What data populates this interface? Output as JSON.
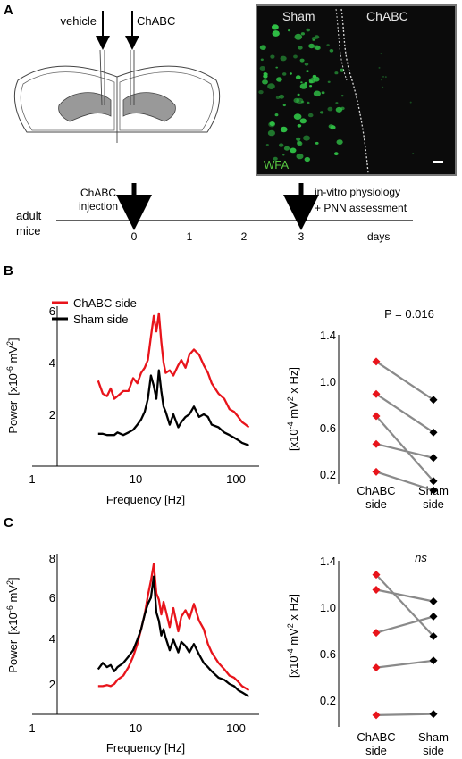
{
  "panel_a": {
    "label": "A",
    "schematic": {
      "left_injection": "vehicle",
      "right_injection": "ChABC"
    },
    "micrograph": {
      "left_label": "Sham",
      "right_label": "ChABC",
      "stain": "WFA",
      "colors": {
        "background": "#0b0b0b",
        "cells": "#2fbf45",
        "stain_label": "#57c641"
      }
    },
    "timeline": {
      "subject_line1": "adult",
      "subject_line2": "mice",
      "event_start_line1": "ChABC",
      "event_start_line2": "injection",
      "event_end_line1": "in-vitro physiology",
      "event_end_line2": "+ PNN assessment",
      "ticks": [
        "0",
        "1",
        "2",
        "3"
      ],
      "unit": "days"
    }
  },
  "panel_b": {
    "label": "B",
    "spectrum": {
      "legend": [
        "ChABC side",
        "Sham side"
      ],
      "ylabel_prefix": "Power",
      "ylabel_unit_pre": "[x10",
      "ylabel_exp": "-6",
      "ylabel_unit_mid": " mV",
      "ylabel_exp2": "2",
      "ylabel_unit_post": "]",
      "xlabel": "Frequency [Hz]",
      "yticks": [
        "2",
        "4",
        "6"
      ],
      "xticks": [
        "1",
        "10",
        "100"
      ]
    },
    "paired": {
      "annotation": "P = 0.016",
      "ylabel_pre": "[x10",
      "ylabel_exp": "-4",
      "ylabel_mid": " mV",
      "ylabel_exp2": "2",
      "ylabel_post": " x Hz]",
      "yticks": [
        "0.2",
        "0.6",
        "1.0",
        "1.4"
      ],
      "cat1_line1": "ChABC",
      "cat1_line2": "side",
      "cat2_line1": "Sham",
      "cat2_line2": "side"
    }
  },
  "panel_c": {
    "label": "C",
    "spectrum": {
      "ylabel_prefix": "Power",
      "ylabel_unit_pre": "[x10",
      "ylabel_exp": "-6",
      "ylabel_unit_mid": " mV",
      "ylabel_exp2": "2",
      "ylabel_unit_post": "]",
      "xlabel": "Frequency [Hz]",
      "yticks": [
        "2",
        "4",
        "6",
        "8"
      ],
      "xticks": [
        "1",
        "10",
        "100"
      ]
    },
    "paired": {
      "annotation": "ns",
      "ylabel_pre": "[x10",
      "ylabel_exp": "-4",
      "ylabel_mid": " mV",
      "ylabel_exp2": "2",
      "ylabel_post": " x Hz]",
      "yticks": [
        "0.2",
        "0.6",
        "1.0",
        "1.4"
      ],
      "cat1_line1": "ChABC",
      "cat1_line2": "side",
      "cat2_line1": "Sham",
      "cat2_line2": "side"
    }
  },
  "chart_data": [
    {
      "type": "line",
      "panel": "B-spectrum",
      "xscale": "log",
      "xlim": [
        1,
        140
      ],
      "ylim": [
        0,
        6
      ],
      "xlabel": "Frequency [Hz]",
      "ylabel": "Power [x10-6 mV2]",
      "legend_position": "top-left",
      "series": [
        {
          "name": "ChABC side",
          "color": "#e8141b",
          "x": [
            4.5,
            5,
            5.5,
            6,
            6.5,
            7,
            8,
            9,
            10,
            11,
            12,
            13,
            14,
            15,
            16,
            17,
            18,
            19,
            20,
            21,
            23,
            25,
            28,
            30,
            33,
            36,
            40,
            45,
            50,
            55,
            60,
            70,
            80,
            90,
            100,
            110,
            120,
            130,
            140
          ],
          "y": [
            3.3,
            2.8,
            2.7,
            3.0,
            2.6,
            2.7,
            2.9,
            2.9,
            3.4,
            3.2,
            3.6,
            3.8,
            4.1,
            5.0,
            5.8,
            5.2,
            5.9,
            4.8,
            4.0,
            3.6,
            3.7,
            3.5,
            3.9,
            4.1,
            3.8,
            4.3,
            4.5,
            4.3,
            3.9,
            3.6,
            3.2,
            2.8,
            2.6,
            2.2,
            2.1,
            1.9,
            1.7,
            1.6,
            1.5
          ]
        },
        {
          "name": "Sham side",
          "color": "#000000",
          "x": [
            4.5,
            5,
            5.5,
            6,
            6.5,
            7,
            8,
            9,
            10,
            11,
            12,
            13,
            14,
            15,
            16,
            17,
            18,
            19,
            20,
            21,
            23,
            25,
            28,
            30,
            33,
            36,
            40,
            45,
            50,
            55,
            60,
            70,
            80,
            90,
            100,
            110,
            120,
            130,
            140
          ],
          "y": [
            1.25,
            1.25,
            1.2,
            1.2,
            1.2,
            1.3,
            1.2,
            1.3,
            1.4,
            1.6,
            1.8,
            2.1,
            2.6,
            3.5,
            3.1,
            2.6,
            3.7,
            2.9,
            2.3,
            2.1,
            1.6,
            2.0,
            1.5,
            1.7,
            1.9,
            2.0,
            2.3,
            1.9,
            2.0,
            1.9,
            1.6,
            1.5,
            1.3,
            1.2,
            1.1,
            1.0,
            0.9,
            0.85,
            0.8
          ]
        }
      ]
    },
    {
      "type": "scatter",
      "panel": "B-paired",
      "categories": [
        "ChABC side",
        "Sham side"
      ],
      "ylim": [
        0.05,
        1.4
      ],
      "pairs": [
        [
          1.17,
          0.84
        ],
        [
          0.89,
          0.56
        ],
        [
          0.7,
          0.14
        ],
        [
          0.46,
          0.34
        ],
        [
          0.22,
          0.06
        ]
      ],
      "colors": {
        "ChABC": "#e8141b",
        "Sham": "#000000",
        "connector": "#8a8a8a"
      }
    },
    {
      "type": "line",
      "panel": "C-spectrum",
      "xscale": "log",
      "xlim": [
        1,
        140
      ],
      "ylim": [
        1,
        8
      ],
      "xlabel": "Frequency [Hz]",
      "ylabel": "Power [x10-6 mV2]",
      "series": [
        {
          "name": "ChABC side",
          "color": "#e8141b",
          "x": [
            4.5,
            5,
            5.5,
            6,
            6.5,
            7,
            8,
            9,
            10,
            11,
            12,
            13,
            14,
            15,
            16,
            17,
            18,
            19,
            20,
            21,
            23,
            25,
            28,
            30,
            33,
            36,
            40,
            45,
            50,
            55,
            60,
            70,
            80,
            90,
            100,
            110,
            120,
            130,
            140
          ],
          "y": [
            1.9,
            1.9,
            1.95,
            1.9,
            2.0,
            2.2,
            2.4,
            2.8,
            3.3,
            3.9,
            4.6,
            5.3,
            6.2,
            6.9,
            7.7,
            6.3,
            6.0,
            5.3,
            5.9,
            5.5,
            4.7,
            5.6,
            4.5,
            5.2,
            5.5,
            5.1,
            5.8,
            5.0,
            4.6,
            3.9,
            3.5,
            3.0,
            2.7,
            2.4,
            2.3,
            2.1,
            1.9,
            1.8,
            1.7
          ]
        },
        {
          "name": "Sham side",
          "color": "#000000",
          "x": [
            4.5,
            5,
            5.5,
            6,
            6.5,
            7,
            8,
            9,
            10,
            11,
            12,
            13,
            14,
            15,
            16,
            17,
            18,
            19,
            20,
            21,
            23,
            25,
            28,
            30,
            33,
            36,
            40,
            45,
            50,
            55,
            60,
            70,
            80,
            90,
            100,
            110,
            120,
            130,
            140
          ],
          "y": [
            2.7,
            3.0,
            2.8,
            2.9,
            2.6,
            2.8,
            3.0,
            3.3,
            3.6,
            4.1,
            4.6,
            5.3,
            5.8,
            6.1,
            7.1,
            5.4,
            5.0,
            4.3,
            4.6,
            4.2,
            3.6,
            4.1,
            3.5,
            4.0,
            3.8,
            3.5,
            3.9,
            3.4,
            3.0,
            2.8,
            2.6,
            2.3,
            2.2,
            2.0,
            1.9,
            1.7,
            1.6,
            1.5,
            1.4
          ]
        }
      ]
    },
    {
      "type": "scatter",
      "panel": "C-paired",
      "categories": [
        "ChABC side",
        "Sham side"
      ],
      "ylim": [
        0.05,
        1.4
      ],
      "pairs": [
        [
          1.28,
          0.75
        ],
        [
          1.15,
          1.05
        ],
        [
          0.78,
          0.92
        ],
        [
          0.48,
          0.54
        ],
        [
          0.07,
          0.08
        ]
      ],
      "colors": {
        "ChABC": "#e8141b",
        "Sham": "#000000",
        "connector": "#8a8a8a"
      }
    }
  ]
}
